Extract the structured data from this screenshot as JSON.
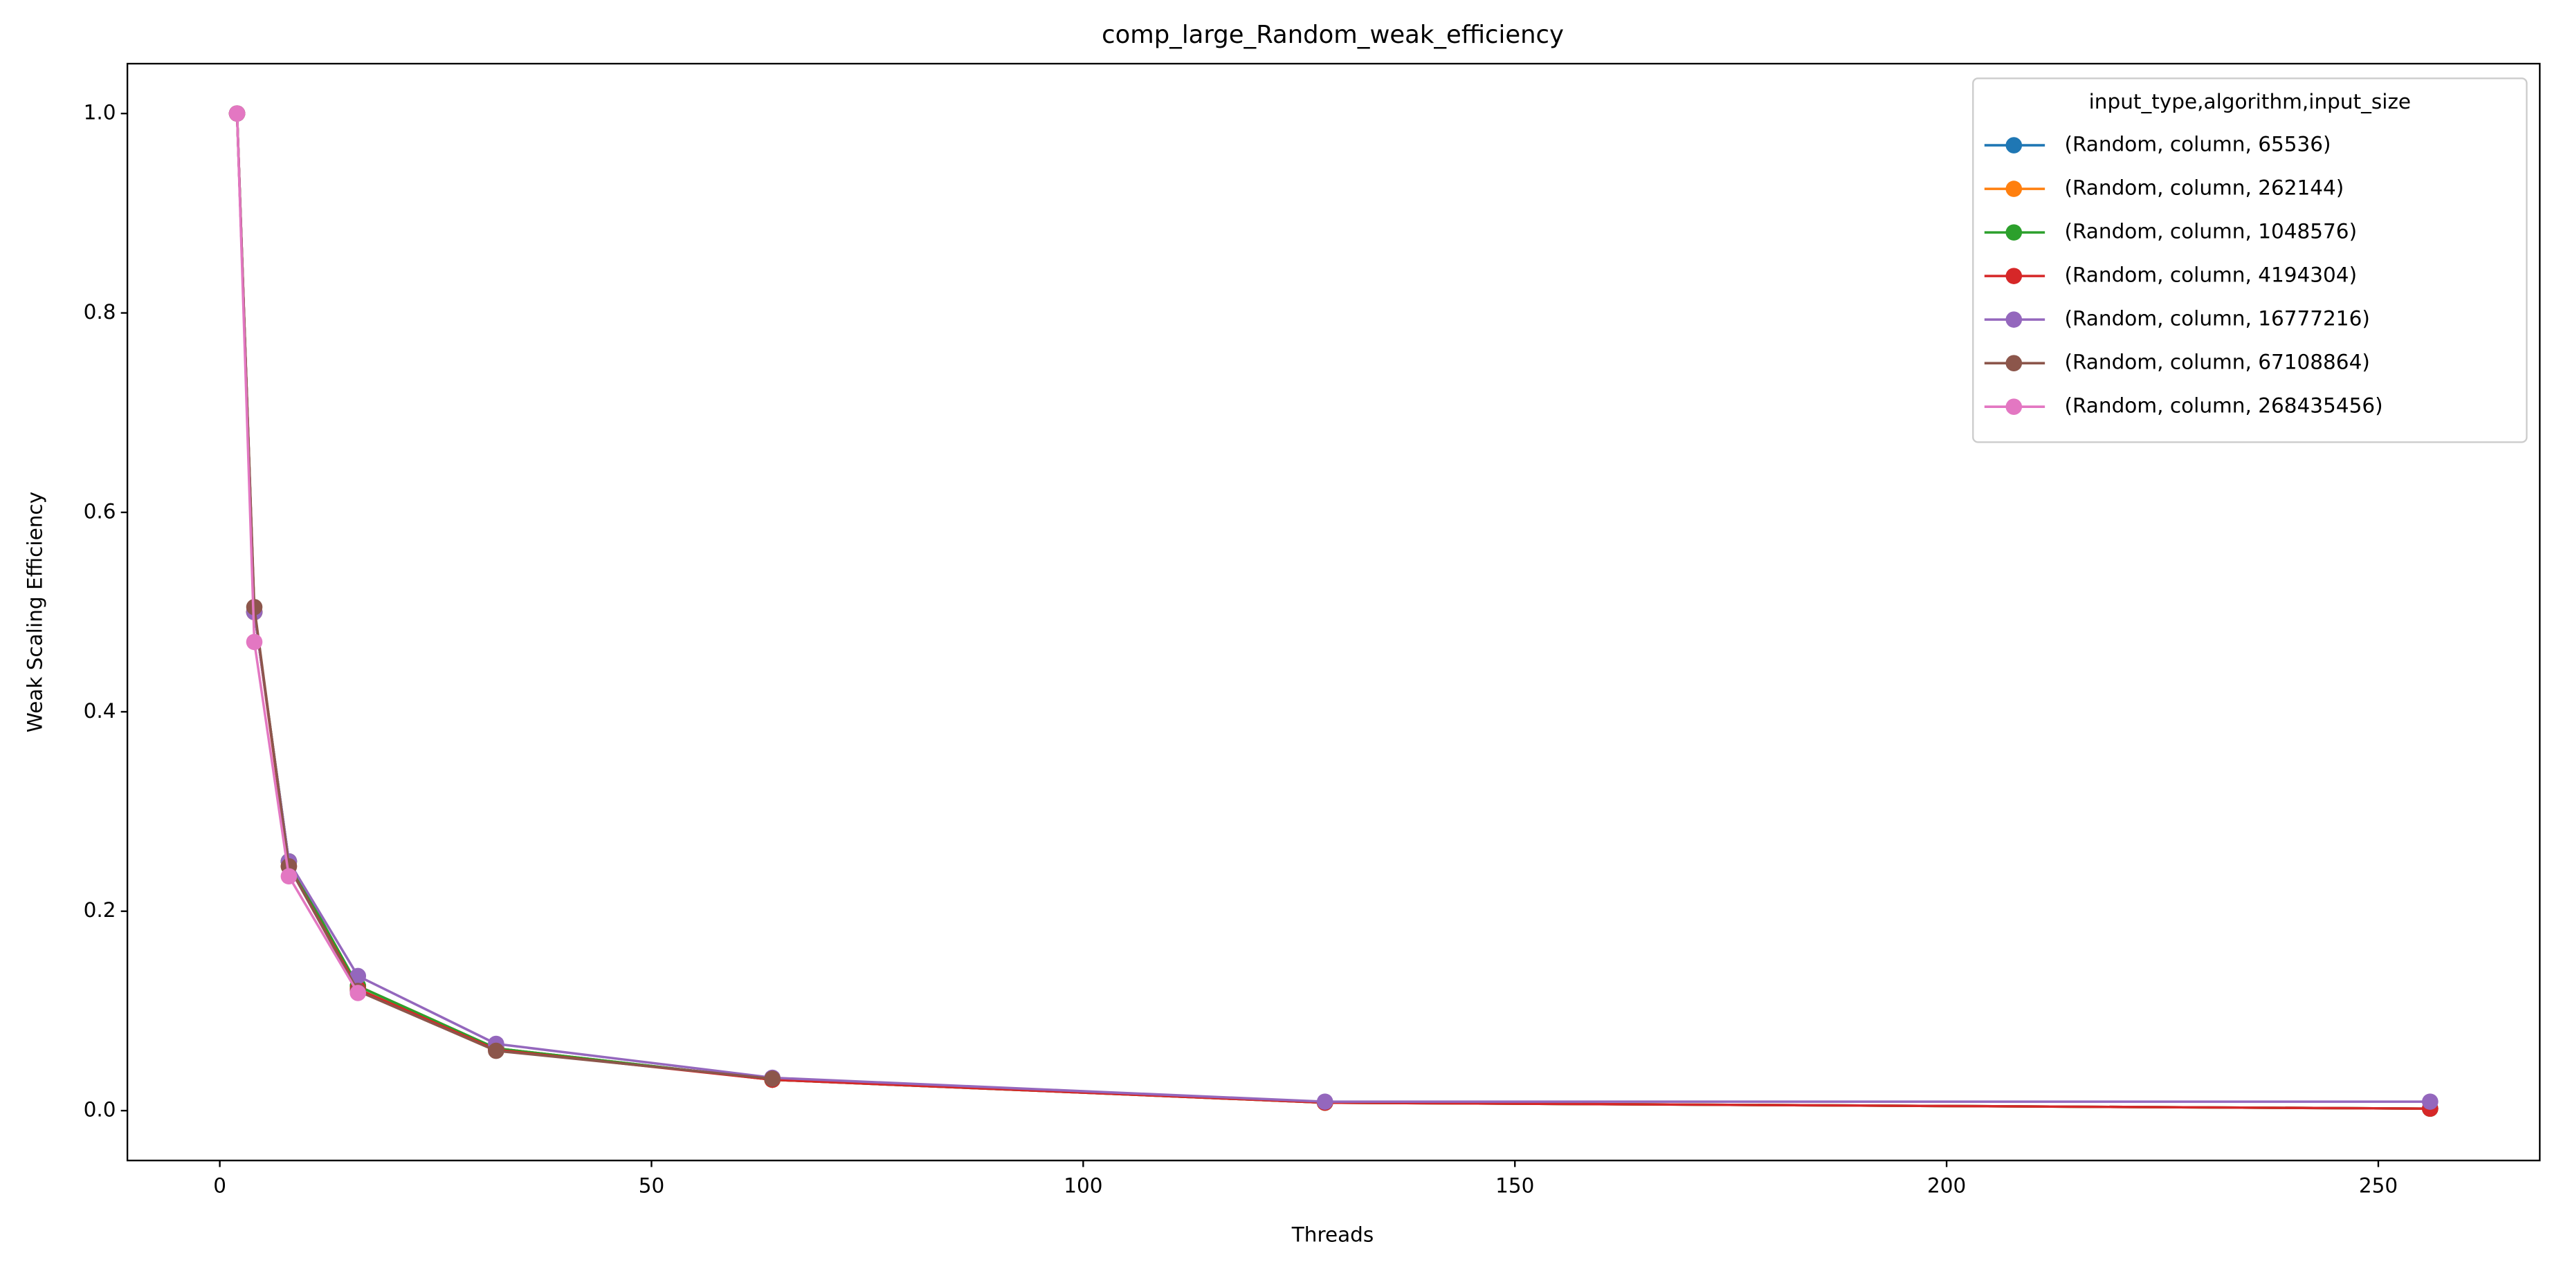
{
  "chart_data": {
    "type": "line",
    "title": "comp_large_Random_weak_efficiency",
    "x_label": "Threads",
    "y_label": "Weak Scaling Efficiency",
    "x": [
      2,
      4,
      8,
      16,
      32,
      64,
      128,
      256
    ],
    "xlim": [
      -10.7,
      268.7
    ],
    "xticks": [
      0,
      50,
      100,
      150,
      200,
      250
    ],
    "ylim": [
      -0.05,
      1.05
    ],
    "yticks": [
      {
        "value": 0,
        "label": "0.0"
      },
      0.2,
      0.4,
      0.6,
      0.8,
      {
        "value": 1,
        "label": "1.0"
      }
    ],
    "grid": false,
    "legend_title": "input_type,algorithm,input_size",
    "legend_corner": "upper right",
    "series": [
      {
        "name": "(Random, column, 65536)",
        "color": "#1f77b4",
        "values": [
          1,
          0.5,
          0.25,
          0.125,
          0.0625,
          0.031,
          0.008,
          0.002
        ]
      },
      {
        "name": "(Random, column, 262144)",
        "color": "#ff7f0e",
        "values": [
          1,
          0.5,
          0.25,
          0.125,
          0.0625,
          0.031,
          0.008,
          0.002
        ]
      },
      {
        "name": "(Random, column, 1048576)",
        "color": "#2ca02c",
        "values": [
          1,
          0.5,
          0.25,
          0.125,
          0.0625,
          0.031,
          0.008,
          0.002
        ]
      },
      {
        "name": "(Random, column, 4194304)",
        "color": "#d62728",
        "values": [
          1,
          0.5,
          0.245,
          0.122,
          0.061,
          0.031,
          0.008,
          0.002
        ]
      },
      {
        "name": "(Random, column, 16777216)",
        "color": "#9467bd",
        "values": [
          1,
          0.5,
          0.25,
          0.135,
          0.067,
          0.033,
          0.009,
          0.009
        ]
      },
      {
        "name": "(Random, column, 67108864)",
        "color": "#8c564b",
        "values": [
          1,
          0.505,
          0.245,
          0.12,
          0.06,
          0.032,
          null,
          null
        ]
      },
      {
        "name": "(Random, column, 268435456)",
        "color": "#e377c2",
        "values": [
          1,
          0.47,
          0.235,
          0.118,
          null,
          null,
          null,
          null
        ]
      }
    ]
  }
}
